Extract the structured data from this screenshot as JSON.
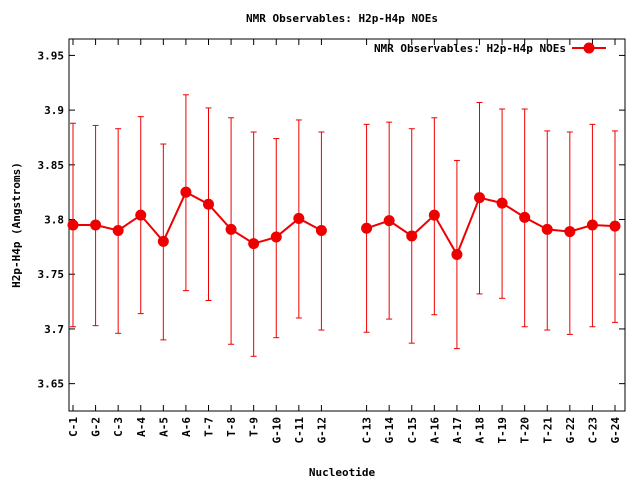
{
  "chart_data": {
    "type": "line",
    "title": "NMR Observables: H2p-H4p NOEs",
    "xlabel": "Nucleotide",
    "ylabel": "H2p-H4p (Angstroms)",
    "ylim": [
      3.625,
      3.965
    ],
    "yticks": [
      3.65,
      3.7,
      3.75,
      3.8,
      3.85,
      3.9,
      3.95
    ],
    "ytick_labels": [
      "3.65",
      "3.7",
      "3.75",
      "3.8",
      "3.85",
      "3.9",
      "3.95"
    ],
    "legend_position": "top-right",
    "grid": false,
    "color": "#ee0000",
    "series": [
      {
        "name": "NMR Observables: H2p-H4p NOEs",
        "segments": [
          {
            "labels": [
              "C-1",
              "G-2",
              "C-3",
              "A-4",
              "A-5",
              "A-6",
              "T-7",
              "T-8",
              "T-9",
              "G-10",
              "C-11",
              "G-12"
            ],
            "values": [
              3.795,
              3.795,
              3.79,
              3.804,
              3.78,
              3.825,
              3.814,
              3.791,
              3.778,
              3.784,
              3.801,
              3.79
            ],
            "err_low": [
              3.702,
              3.703,
              3.696,
              3.714,
              3.69,
              3.735,
              3.726,
              3.686,
              3.675,
              3.692,
              3.71,
              3.699
            ],
            "err_high": [
              3.888,
              3.886,
              3.883,
              3.894,
              3.869,
              3.914,
              3.902,
              3.893,
              3.88,
              3.874,
              3.891,
              3.88
            ]
          },
          {
            "labels": [
              "C-13",
              "G-14",
              "C-15",
              "A-16",
              "A-17",
              "A-18",
              "T-19",
              "T-20",
              "T-21",
              "G-22",
              "C-23",
              "G-24"
            ],
            "values": [
              3.792,
              3.799,
              3.785,
              3.804,
              3.768,
              3.82,
              3.815,
              3.802,
              3.791,
              3.789,
              3.795,
              3.794
            ],
            "err_low": [
              3.697,
              3.709,
              3.687,
              3.713,
              3.682,
              3.732,
              3.728,
              3.702,
              3.699,
              3.695,
              3.702,
              3.706
            ],
            "err_high": [
              3.887,
              3.889,
              3.883,
              3.893,
              3.854,
              3.907,
              3.901,
              3.901,
              3.881,
              3.88,
              3.887,
              3.881
            ]
          }
        ]
      }
    ]
  }
}
